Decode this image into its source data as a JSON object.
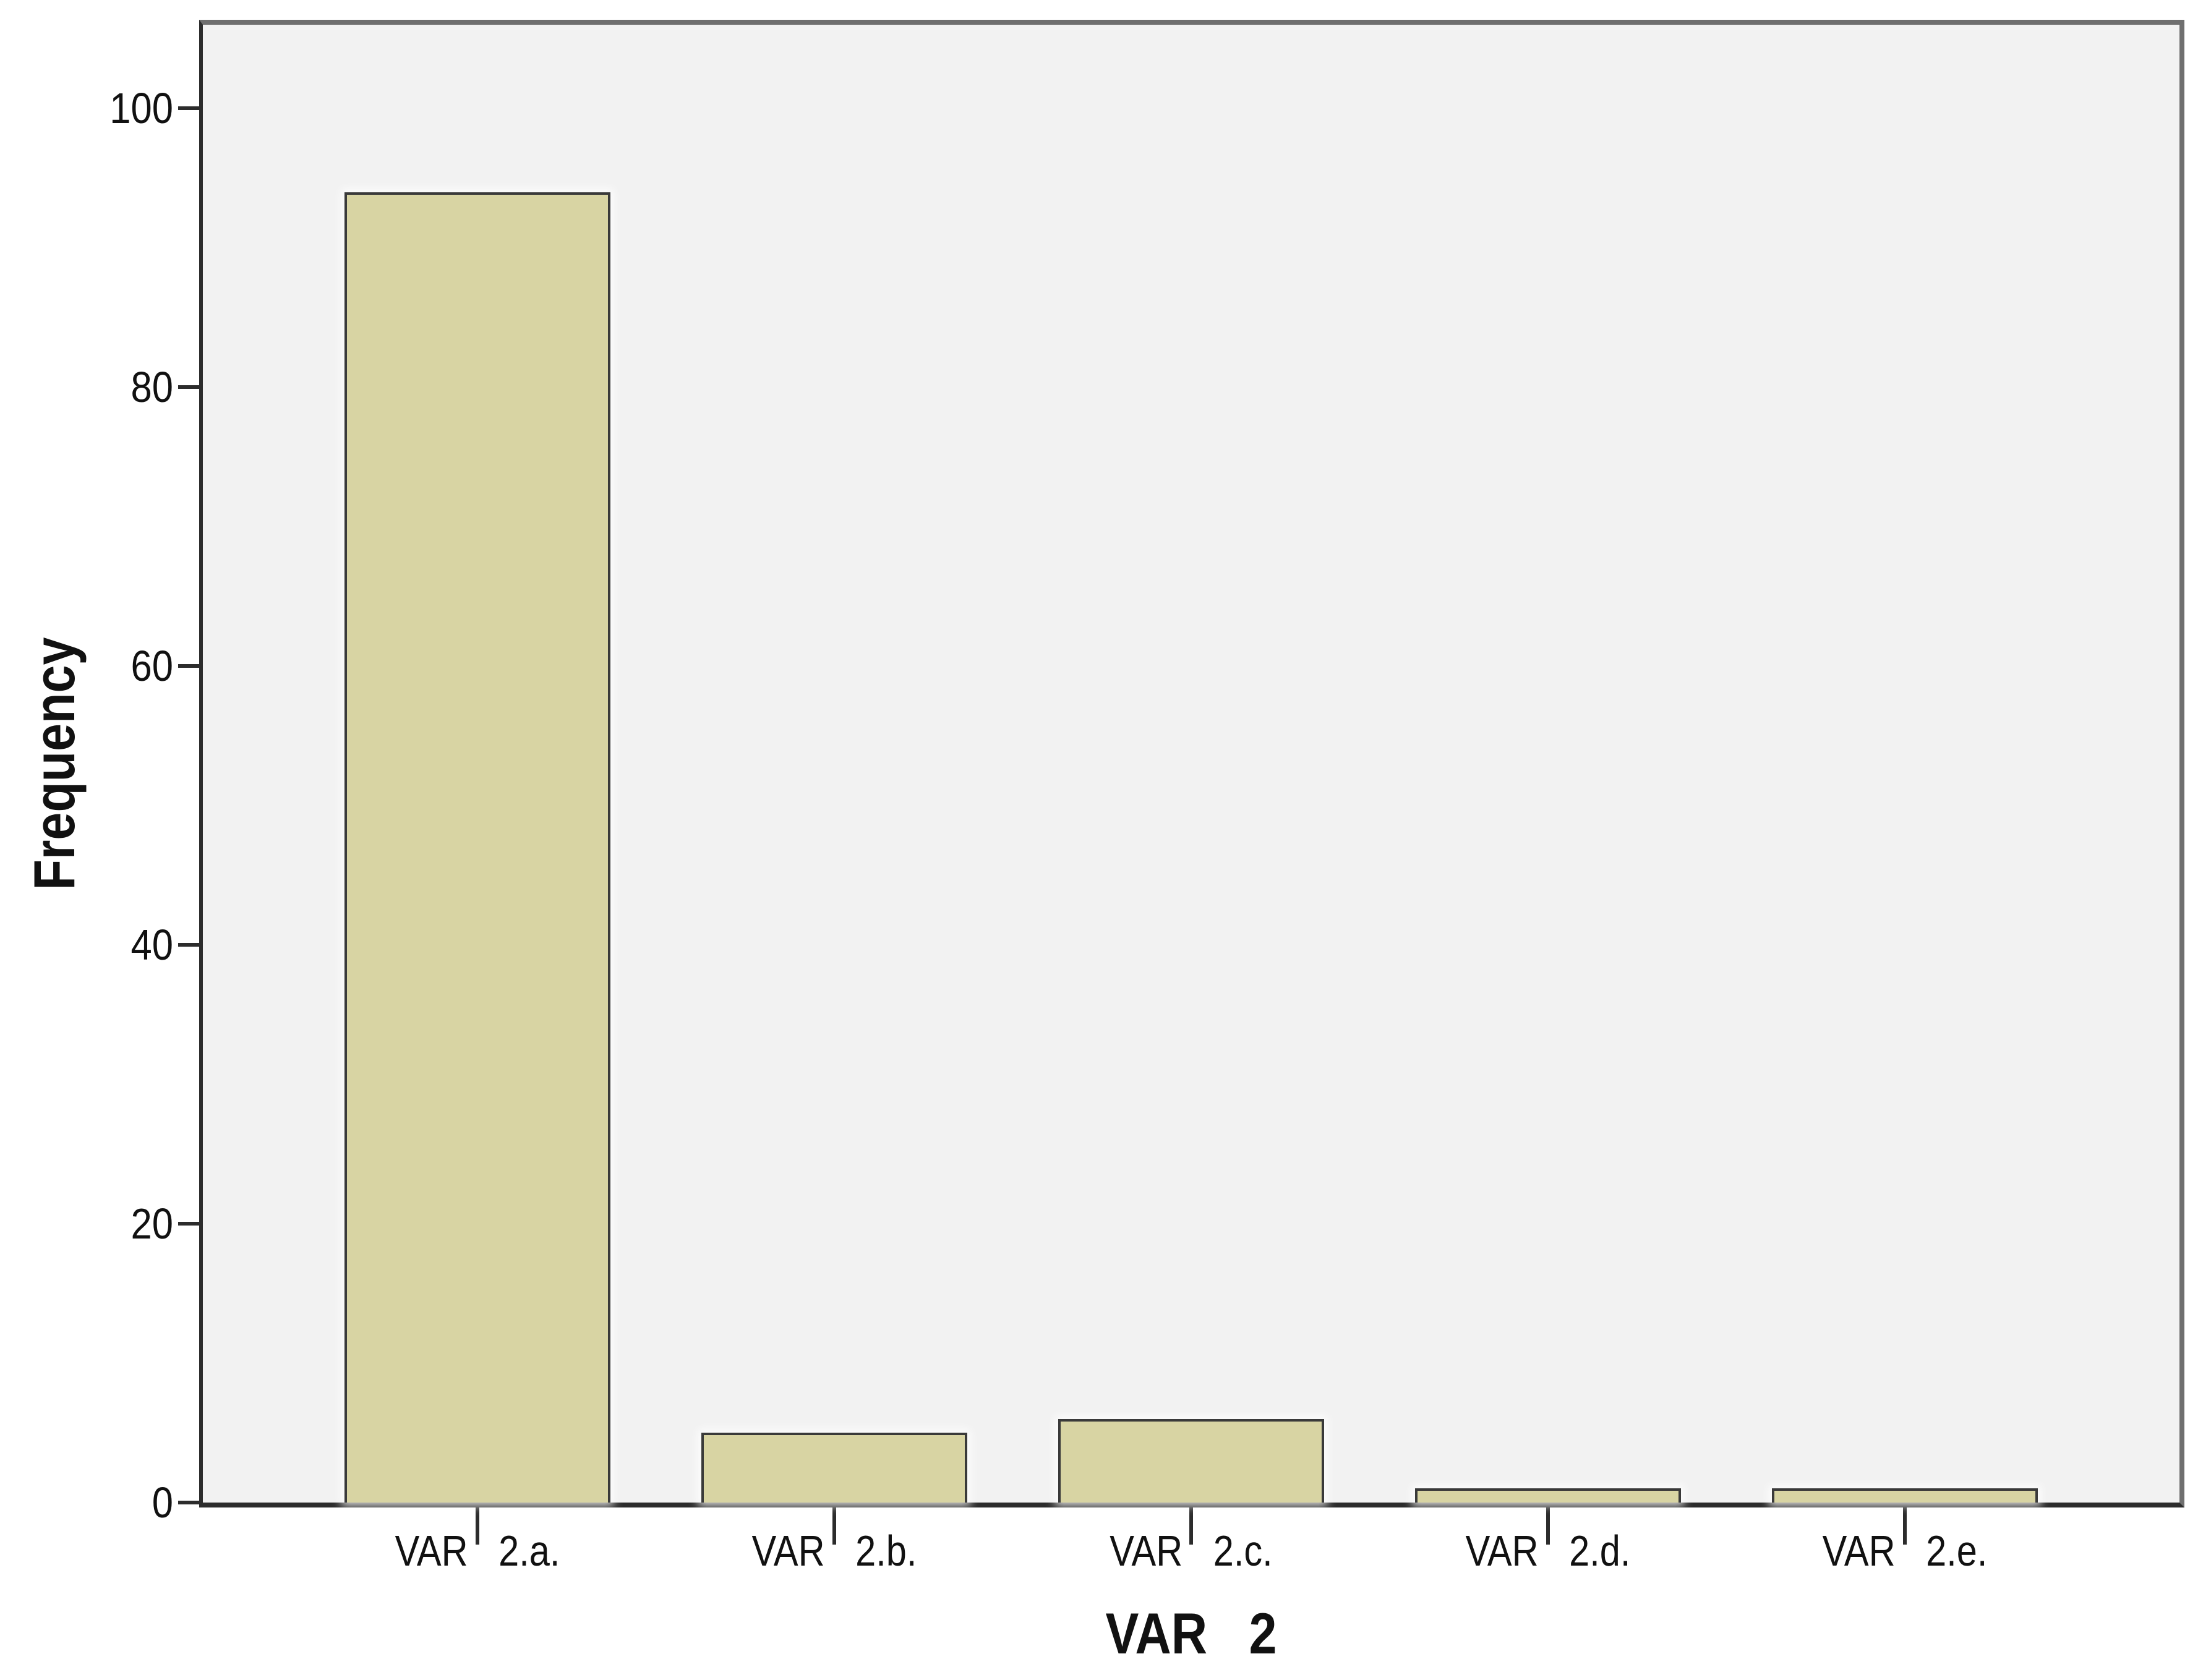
{
  "chart_data": {
    "type": "bar",
    "title": "",
    "categories": [
      "VAR   2.a.",
      "VAR   2.b.",
      "VAR   2.c.",
      "VAR   2.d.",
      "VAR   2.e."
    ],
    "values": [
      94,
      5,
      6,
      1,
      1
    ],
    "xlabel": "VAR   2",
    "ylabel": "Frequency",
    "yticks": [
      0,
      20,
      40,
      60,
      80,
      100
    ],
    "ylim": [
      0,
      106
    ],
    "grid": false,
    "legend": false,
    "layout_hints": {
      "bar_orientation": "vertical",
      "plot_panel": "light gray with gray frame, SPSS style",
      "y_axis_side": "left",
      "x_axis_side": "bottom"
    },
    "colors": {
      "bar_fill": "#d8d4a3",
      "bar_border": "#3a3a3a",
      "plot_bg": "#f2f2f2",
      "frame": "#6f6f6f",
      "axis": "#2c2c2c",
      "text": "#111111",
      "page_bg": "#ffffff"
    }
  }
}
